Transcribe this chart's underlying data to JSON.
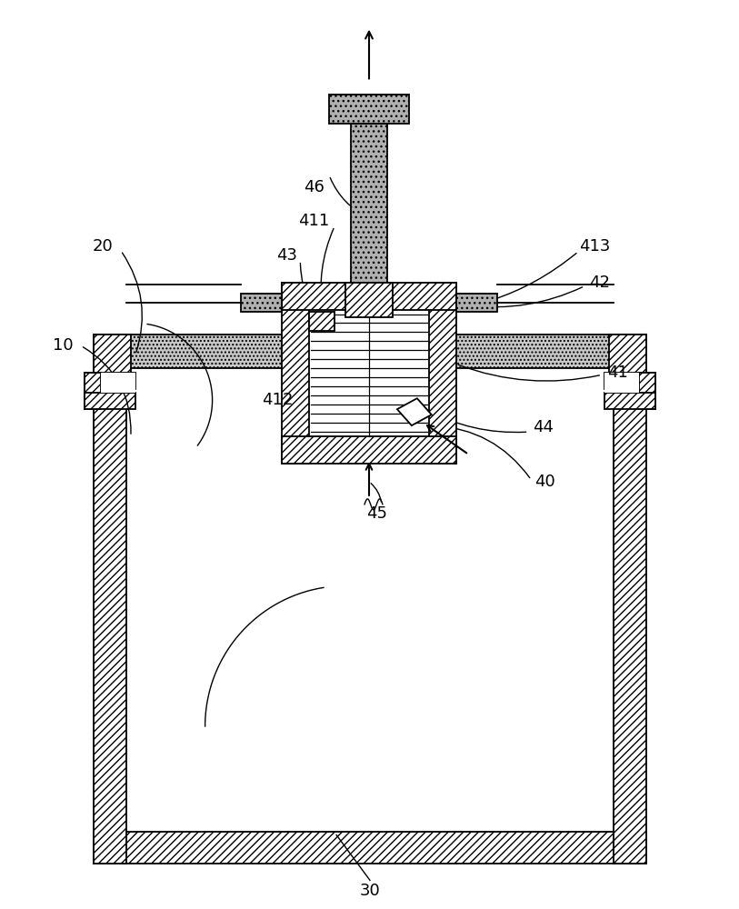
{
  "bg_color": "#ffffff",
  "lc": "#000000",
  "gray": "#b0b0b0",
  "hatch_gray": "#888888"
}
